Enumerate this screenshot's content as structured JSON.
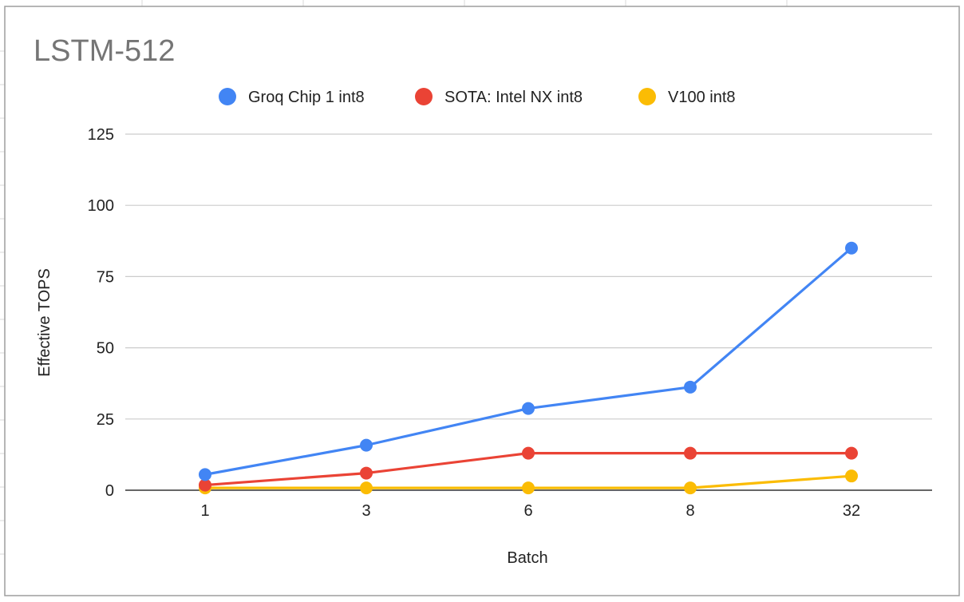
{
  "chart_data": {
    "type": "line",
    "title": "LSTM-512",
    "xlabel": "Batch",
    "ylabel": "Effective TOPS",
    "categories": [
      "1",
      "3",
      "6",
      "8",
      "32"
    ],
    "ylim": [
      0,
      125
    ],
    "yticks": [
      0,
      25,
      50,
      75,
      100,
      125
    ],
    "grid": true,
    "legend_position": "top",
    "series": [
      {
        "name": "Groq Chip 1 int8",
        "color": "#4285f4",
        "values": [
          5.5,
          15.8,
          28.7,
          36.2,
          85.0
        ]
      },
      {
        "name": "SOTA: Intel NX int8",
        "color": "#ea4335",
        "values": [
          1.8,
          6.0,
          13.0,
          13.0,
          13.0
        ]
      },
      {
        "name": "V100 int8",
        "color": "#fbbc04",
        "values": [
          0.8,
          0.8,
          0.8,
          0.8,
          5.0
        ]
      }
    ]
  }
}
